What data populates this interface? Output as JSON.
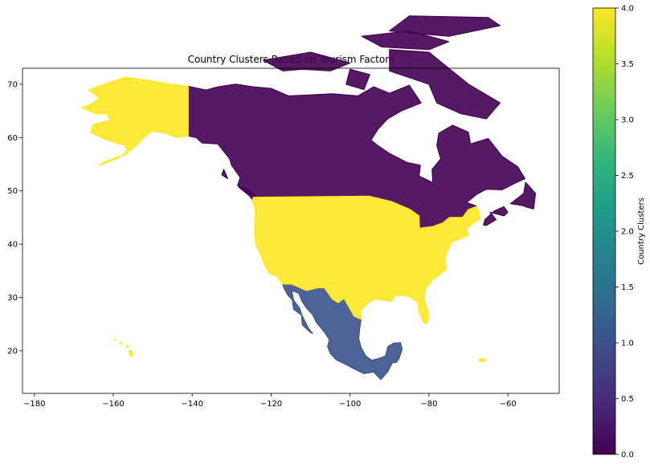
{
  "chart_data": [
    {
      "type": "map",
      "title": "Country Clusters Based on Tourism Factors",
      "xlabel": "",
      "ylabel": "",
      "xlim": [
        -183,
        -47
      ],
      "ylim": [
        12,
        73
      ],
      "x_ticks": [
        -180,
        -160,
        -140,
        -120,
        -100,
        -80,
        -60
      ],
      "y_ticks": [
        20,
        30,
        40,
        50,
        60,
        70
      ],
      "regions": [
        {
          "region": "Canada",
          "cluster": 0,
          "color": "#440154"
        },
        {
          "region": "Mexico",
          "cluster": 1,
          "color": "#3b528b"
        },
        {
          "region": "United States",
          "cluster": 4,
          "color": "#fde725"
        }
      ]
    },
    {
      "type": "colorbar",
      "label": "Country Clusters",
      "range": [
        0,
        4
      ],
      "ticks": [
        "0.0",
        "0.5",
        "1.0",
        "1.5",
        "2.0",
        "2.5",
        "3.0",
        "3.5",
        "4.0"
      ],
      "colormap": [
        "#440154",
        "#482878",
        "#3e4989",
        "#31688e",
        "#26828e",
        "#1f9e89",
        "#35b779",
        "#6ece58",
        "#b5de2b",
        "#fde725"
      ]
    }
  ]
}
